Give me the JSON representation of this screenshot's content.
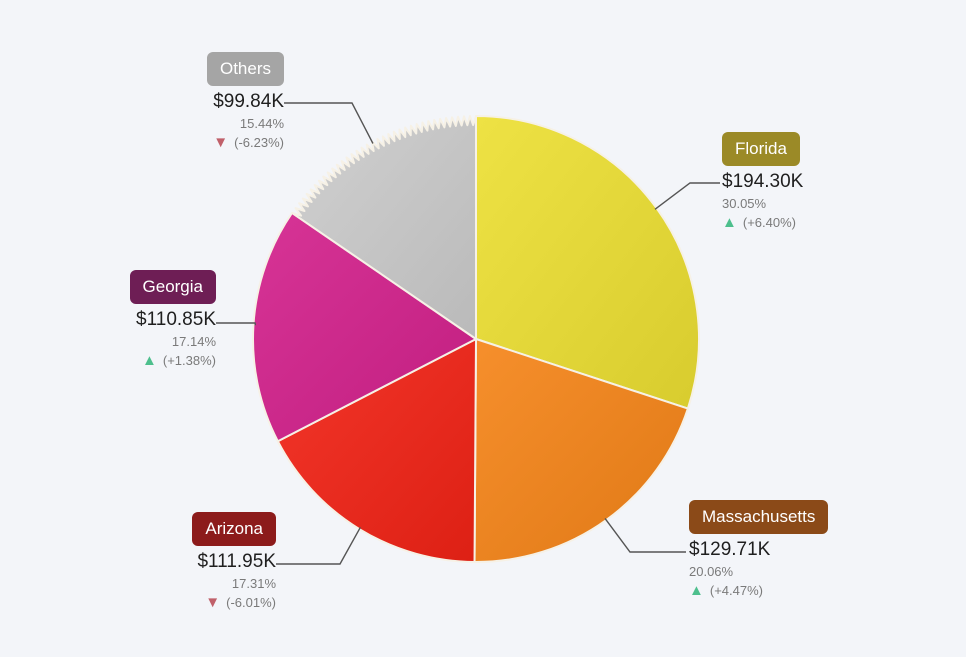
{
  "colors": {
    "up": "#4dbf8d",
    "down": "#c0606a",
    "connector": "#555555",
    "slice_border": "#f6f1e6"
  },
  "chart_data": {
    "type": "pie",
    "start_angle_deg": 0,
    "direction": "clockwise",
    "slices": [
      {
        "label": "Florida",
        "value": 194.3,
        "value_text": "$194.30K",
        "percent": 30.05,
        "percent_text": "30.05%",
        "change": 6.4,
        "change_text": "(+6.40%)",
        "trend": "up",
        "color": "#e4d83a",
        "pill_color": "#9b8a27"
      },
      {
        "label": "Massachusetts",
        "value": 129.71,
        "value_text": "$129.71K",
        "percent": 20.06,
        "percent_text": "20.06%",
        "change": 4.47,
        "change_text": "(+4.47%)",
        "trend": "up",
        "color": "#ec8522",
        "pill_color": "#8b4a18"
      },
      {
        "label": "Arizona",
        "value": 111.95,
        "value_text": "$111.95K",
        "percent": 17.31,
        "percent_text": "17.31%",
        "change": -6.01,
        "change_text": "(-6.01%)",
        "trend": "down",
        "color": "#e92c20",
        "pill_color": "#8c1b1b"
      },
      {
        "label": "Georgia",
        "value": 110.85,
        "value_text": "$110.85K",
        "percent": 17.14,
        "percent_text": "17.14%",
        "change": 1.38,
        "change_text": "(+1.38%)",
        "trend": "up",
        "color": "#cd2a8c",
        "pill_color": "#6e1e55"
      },
      {
        "label": "Others",
        "value": 99.84,
        "value_text": "$99.84K",
        "percent": 15.44,
        "percent_text": "15.44%",
        "change": -6.23,
        "change_text": "(-6.23%)",
        "trend": "down",
        "color": "#c6c6c6",
        "pill_color": "#a5a5a5",
        "serrated_edge": true
      }
    ]
  }
}
